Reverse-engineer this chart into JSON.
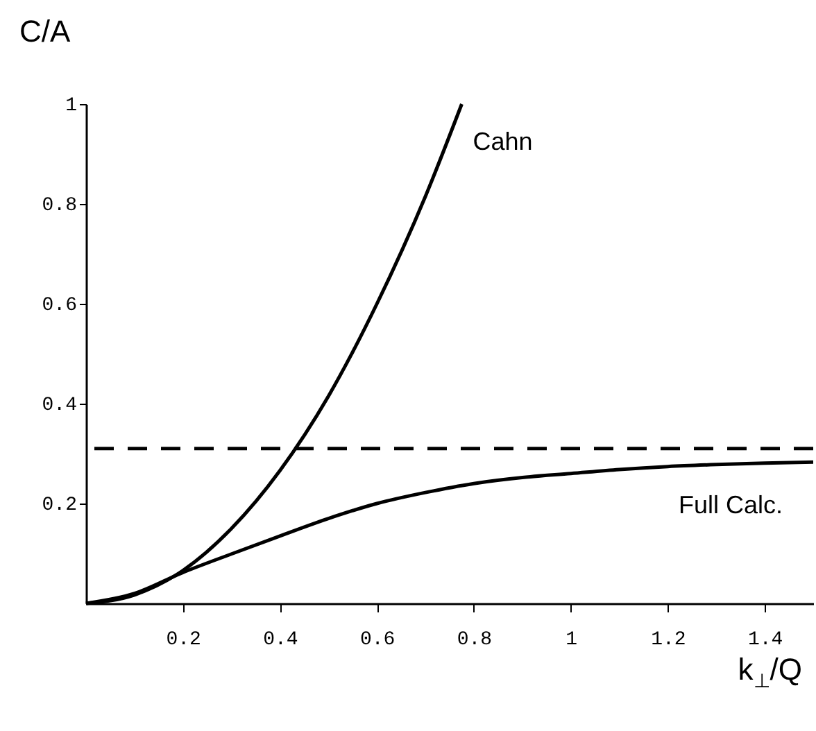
{
  "chart_data": {
    "type": "line",
    "xlabel": "k$_{⊥}$/Q",
    "ylabel": "C/A",
    "xlim": [
      0,
      1.5
    ],
    "ylim": [
      0,
      1
    ],
    "xticks": [
      0.2,
      0.4,
      0.6,
      0.8,
      1,
      1.2,
      1.4
    ],
    "yticks": [
      0.2,
      0.4,
      0.6,
      0.8,
      1
    ],
    "marker": "none",
    "line_style": "solid",
    "series": [
      {
        "name": "Cahn",
        "color": "#000000",
        "x": [
          0,
          0.1,
          0.2,
          0.3,
          0.4,
          0.5,
          0.6,
          0.7,
          0.775
        ],
        "values": [
          0,
          0.017,
          0.066,
          0.15,
          0.266,
          0.415,
          0.6,
          0.815,
          1.0
        ]
      },
      {
        "name": "Full Calc.",
        "color": "#000000",
        "x": [
          0,
          0.1,
          0.2,
          0.3,
          0.4,
          0.5,
          0.6,
          0.7,
          0.8,
          0.9,
          1.0,
          1.1,
          1.2,
          1.3,
          1.4,
          1.5
        ],
        "values": [
          0,
          0.02,
          0.062,
          0.099,
          0.135,
          0.17,
          0.2,
          0.222,
          0.24,
          0.252,
          0.26,
          0.268,
          0.274,
          0.278,
          0.281,
          0.283
        ]
      }
    ],
    "ref_lines": [
      {
        "axis": "y",
        "value": 0.31,
        "color": "#000000",
        "line_style": "dashed"
      }
    ]
  }
}
